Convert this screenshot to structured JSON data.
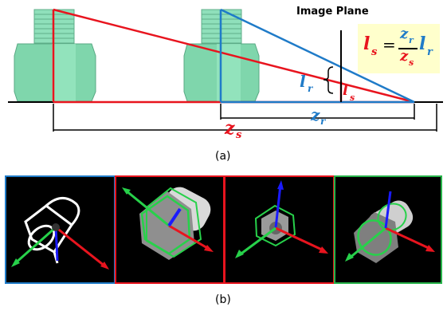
{
  "figure_a": {
    "image_plane_label": "Image Plane",
    "lr_label": "l",
    "lr_sub": "r",
    "ls_label": "l",
    "ls_sub": "s",
    "zr_label": "z",
    "zr_sub": "r",
    "zs_label": "z",
    "zs_sub": "s",
    "formula": {
      "lhs": "l",
      "lhs_sub": "s",
      "equals": "=",
      "num": "z",
      "num_sub": "r",
      "den": "z",
      "den_sub": "s",
      "rhs": "l",
      "rhs_sub": "r"
    },
    "caption": "(a)"
  },
  "figure_b": {
    "caption": "(b)"
  },
  "colors": {
    "red": "#e8141e",
    "blue": "#1f7bc8",
    "green": "#27b34a",
    "formula_bg": "#ffffcc",
    "nut": "#7fd6ac"
  }
}
